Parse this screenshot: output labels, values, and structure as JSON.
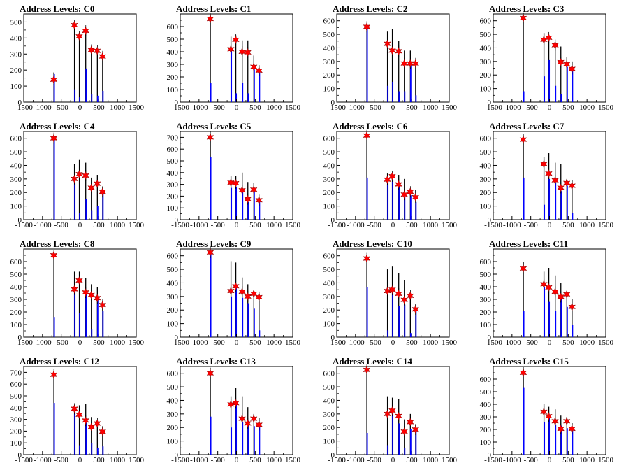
{
  "colors": {
    "background": "#ffffff",
    "bar_total": "#000000",
    "bar_blue": "#0000ff",
    "marker": "#ff0000",
    "axis": "#000000"
  },
  "chart_data": [
    {
      "type": "bar",
      "title": "Address Levels: C0",
      "xlim": [
        -1500,
        1500
      ],
      "ylim": [
        0,
        550
      ],
      "x_ticks": [
        -1500,
        -1000,
        -500,
        0,
        500,
        1000,
        1500
      ],
      "y_ticks": [
        0,
        100,
        200,
        300,
        400,
        500
      ],
      "positions": [
        -700,
        -150,
        -20,
        150,
        300,
        460,
        600
      ],
      "values_black": [
        185,
        500,
        415,
        460,
        340,
        330,
        300
      ],
      "values_blue": [
        175,
        80,
        30,
        210,
        50,
        40,
        70
      ],
      "markers": [
        140,
        480,
        410,
        445,
        325,
        320,
        285
      ]
    },
    {
      "type": "bar",
      "title": "Address Levels: C1",
      "xlim": [
        -1500,
        1500
      ],
      "ylim": [
        0,
        700
      ],
      "x_ticks": [
        -1500,
        -1000,
        -500,
        0,
        500,
        1000,
        1500
      ],
      "y_ticks": [
        0,
        100,
        200,
        300,
        400,
        500,
        600
      ],
      "positions": [
        -700,
        -150,
        -20,
        150,
        300,
        460,
        600
      ],
      "values_black": [
        690,
        520,
        530,
        490,
        490,
        370,
        280
      ],
      "values_blue": [
        150,
        410,
        70,
        150,
        70,
        260,
        250
      ],
      "markers": [
        660,
        420,
        495,
        400,
        395,
        280,
        250
      ]
    },
    {
      "type": "bar",
      "title": "Address Levels: C2",
      "xlim": [
        -1500,
        1500
      ],
      "ylim": [
        0,
        650
      ],
      "x_ticks": [
        -1500,
        -1000,
        -500,
        0,
        500,
        1000,
        1500
      ],
      "y_ticks": [
        0,
        100,
        200,
        300,
        400,
        500,
        600
      ],
      "positions": [
        -700,
        -150,
        -20,
        150,
        300,
        460,
        600
      ],
      "values_black": [
        560,
        520,
        540,
        450,
        380,
        380,
        290
      ],
      "values_blue": [
        540,
        120,
        150,
        80,
        80,
        280,
        50
      ],
      "markers": [
        555,
        430,
        380,
        375,
        285,
        285,
        285
      ]
    },
    {
      "type": "bar",
      "title": "Address Levels: C3",
      "xlim": [
        -1500,
        1500
      ],
      "ylim": [
        0,
        650
      ],
      "x_ticks": [
        -1500,
        -1000,
        -500,
        0,
        500,
        1000,
        1500
      ],
      "y_ticks": [
        0,
        100,
        200,
        300,
        400,
        500,
        600
      ],
      "positions": [
        -700,
        -150,
        -20,
        150,
        300,
        460,
        600
      ],
      "values_black": [
        640,
        510,
        470,
        440,
        410,
        330,
        300
      ],
      "values_blue": [
        80,
        190,
        310,
        120,
        60,
        260,
        230
      ],
      "markers": [
        620,
        460,
        475,
        420,
        295,
        280,
        245
      ]
    },
    {
      "type": "bar",
      "title": "Address Levels: C4",
      "xlim": [
        -1500,
        1500
      ],
      "ylim": [
        0,
        650
      ],
      "x_ticks": [
        -1500,
        -1000,
        -500,
        0,
        500,
        1000,
        1500
      ],
      "y_ticks": [
        0,
        100,
        200,
        300,
        400,
        500,
        600
      ],
      "positions": [
        -700,
        -150,
        -20,
        150,
        300,
        460,
        600
      ],
      "values_black": [
        620,
        410,
        440,
        420,
        310,
        330,
        240
      ],
      "values_blue": [
        600,
        270,
        50,
        150,
        70,
        100,
        200
      ],
      "markers": [
        600,
        300,
        335,
        325,
        235,
        265,
        205
      ]
    },
    {
      "type": "bar",
      "title": "Address Levels: C5",
      "xlim": [
        -1500,
        1500
      ],
      "ylim": [
        0,
        750
      ],
      "x_ticks": [
        -1500,
        -1000,
        -500,
        0,
        500,
        1000,
        1500
      ],
      "y_ticks": [
        0,
        100,
        200,
        300,
        400,
        500,
        600,
        700
      ],
      "positions": [
        -700,
        -150,
        -20,
        150,
        300,
        460,
        600
      ],
      "values_black": [
        730,
        370,
        370,
        400,
        320,
        310,
        190
      ],
      "values_blue": [
        530,
        270,
        280,
        260,
        150,
        260,
        170
      ],
      "markers": [
        700,
        315,
        310,
        250,
        175,
        255,
        165
      ]
    },
    {
      "type": "bar",
      "title": "Address Levels: C6",
      "xlim": [
        -1500,
        1500
      ],
      "ylim": [
        0,
        650
      ],
      "x_ticks": [
        -1500,
        -1000,
        -500,
        0,
        500,
        1000,
        1500
      ],
      "y_ticks": [
        0,
        100,
        200,
        300,
        400,
        500,
        600
      ],
      "positions": [
        -700,
        -150,
        -20,
        150,
        300,
        460,
        600
      ],
      "values_black": [
        640,
        340,
        340,
        330,
        300,
        230,
        220
      ],
      "values_blue": [
        310,
        290,
        290,
        250,
        170,
        180,
        130
      ],
      "markers": [
        620,
        295,
        320,
        260,
        185,
        205,
        165
      ]
    },
    {
      "type": "bar",
      "title": "Address Levels: C7",
      "xlim": [
        -1500,
        1500
      ],
      "ylim": [
        0,
        650
      ],
      "x_ticks": [
        -1500,
        -1000,
        -500,
        0,
        500,
        1000,
        1500
      ],
      "y_ticks": [
        0,
        100,
        200,
        300,
        400,
        500,
        600
      ],
      "positions": [
        -700,
        -150,
        -20,
        150,
        300,
        460,
        600
      ],
      "values_black": [
        620,
        460,
        490,
        420,
        410,
        300,
        290
      ],
      "values_blue": [
        310,
        110,
        300,
        270,
        210,
        250,
        50
      ],
      "markers": [
        590,
        410,
        340,
        290,
        235,
        270,
        250
      ]
    },
    {
      "type": "bar",
      "title": "Address Levels: C8",
      "xlim": [
        -1500,
        1500
      ],
      "ylim": [
        0,
        700
      ],
      "x_ticks": [
        -1500,
        -1000,
        -500,
        0,
        500,
        1000,
        1500
      ],
      "y_ticks": [
        0,
        100,
        200,
        300,
        400,
        500,
        600
      ],
      "positions": [
        -700,
        -150,
        -20,
        150,
        300,
        460,
        600
      ],
      "values_black": [
        680,
        520,
        520,
        470,
        420,
        400,
        280
      ],
      "values_blue": [
        160,
        380,
        190,
        360,
        60,
        300,
        210
      ],
      "markers": [
        650,
        380,
        450,
        355,
        335,
        310,
        255
      ]
    },
    {
      "type": "bar",
      "title": "Address Levels: C9",
      "xlim": [
        -1500,
        1500
      ],
      "ylim": [
        0,
        650
      ],
      "x_ticks": [
        -1500,
        -1000,
        -500,
        0,
        500,
        1000,
        1500
      ],
      "y_ticks": [
        0,
        100,
        200,
        300,
        400,
        500,
        600
      ],
      "positions": [
        -700,
        -150,
        -20,
        150,
        300,
        460,
        600
      ],
      "values_black": [
        640,
        560,
        550,
        440,
        390,
        330,
        300
      ],
      "values_blue": [
        620,
        300,
        360,
        290,
        250,
        210,
        50
      ],
      "markers": [
        625,
        340,
        375,
        335,
        300,
        320,
        295
      ]
    },
    {
      "type": "bar",
      "title": "Address Levels: C10",
      "xlim": [
        -1500,
        1500
      ],
      "ylim": [
        0,
        650
      ],
      "x_ticks": [
        -1500,
        -1000,
        -500,
        0,
        500,
        1000,
        1500
      ],
      "y_ticks": [
        0,
        100,
        200,
        300,
        400,
        500,
        600
      ],
      "positions": [
        -700,
        -150,
        -20,
        150,
        300,
        460,
        600
      ],
      "values_black": [
        600,
        500,
        520,
        470,
        420,
        310,
        240
      ],
      "values_blue": [
        370,
        50,
        340,
        230,
        240,
        30,
        200
      ],
      "markers": [
        580,
        340,
        350,
        320,
        275,
        305,
        205
      ]
    },
    {
      "type": "bar",
      "title": "Address Levels: C11",
      "xlim": [
        -1500,
        1500
      ],
      "ylim": [
        0,
        700
      ],
      "x_ticks": [
        -1500,
        -1000,
        -500,
        0,
        500,
        1000,
        1500
      ],
      "y_ticks": [
        0,
        100,
        200,
        300,
        400,
        500,
        600
      ],
      "positions": [
        -700,
        -150,
        -20,
        150,
        300,
        460,
        600
      ],
      "values_black": [
        600,
        520,
        550,
        490,
        430,
        340,
        300
      ],
      "values_blue": [
        210,
        400,
        280,
        210,
        320,
        240,
        100
      ],
      "markers": [
        545,
        420,
        395,
        360,
        320,
        340,
        240
      ]
    },
    {
      "type": "bar",
      "title": "Address Levels: C12",
      "xlim": [
        -1500,
        1500
      ],
      "ylim": [
        0,
        750
      ],
      "x_ticks": [
        -1500,
        -1000,
        -500,
        0,
        500,
        1000,
        1500
      ],
      "y_ticks": [
        0,
        100,
        200,
        300,
        400,
        500,
        600,
        700
      ],
      "positions": [
        -700,
        -150,
        -20,
        150,
        300,
        460,
        600
      ],
      "values_black": [
        700,
        420,
        420,
        430,
        320,
        270,
        240
      ],
      "values_blue": [
        440,
        380,
        80,
        270,
        100,
        60,
        70
      ],
      "markers": [
        680,
        390,
        340,
        290,
        235,
        265,
        195
      ]
    },
    {
      "type": "bar",
      "title": "Address Levels: C13",
      "xlim": [
        -1500,
        1500
      ],
      "ylim": [
        0,
        650
      ],
      "x_ticks": [
        -1500,
        -1000,
        -500,
        0,
        500,
        1000,
        1500
      ],
      "y_ticks": [
        0,
        100,
        200,
        300,
        400,
        500,
        600
      ],
      "positions": [
        -700,
        -150,
        -20,
        150,
        300,
        460,
        600
      ],
      "values_black": [
        620,
        430,
        490,
        430,
        350,
        300,
        270
      ],
      "values_blue": [
        280,
        200,
        380,
        240,
        250,
        210,
        210
      ],
      "markers": [
        600,
        370,
        380,
        265,
        230,
        265,
        220
      ]
    },
    {
      "type": "bar",
      "title": "Address Levels: C14",
      "xlim": [
        -1500,
        1500
      ],
      "ylim": [
        0,
        650
      ],
      "x_ticks": [
        -1500,
        -1000,
        -500,
        0,
        500,
        1000,
        1500
      ],
      "y_ticks": [
        0,
        100,
        200,
        300,
        400,
        500,
        600
      ],
      "positions": [
        -700,
        -150,
        -20,
        150,
        300,
        460,
        600
      ],
      "values_black": [
        640,
        430,
        420,
        410,
        260,
        300,
        220
      ],
      "values_blue": [
        160,
        70,
        310,
        230,
        50,
        190,
        180
      ],
      "markers": [
        625,
        300,
        325,
        285,
        170,
        240,
        185
      ]
    },
    {
      "type": "bar",
      "title": "Address Levels: C15",
      "xlim": [
        -1500,
        1500
      ],
      "ylim": [
        0,
        700
      ],
      "x_ticks": [
        -1500,
        -1000,
        -500,
        0,
        500,
        1000,
        1500
      ],
      "y_ticks": [
        0,
        100,
        200,
        300,
        400,
        500,
        600
      ],
      "positions": [
        -700,
        -150,
        -20,
        150,
        300,
        460,
        600
      ],
      "values_black": [
        680,
        400,
        380,
        360,
        310,
        300,
        250
      ],
      "values_blue": [
        530,
        260,
        290,
        240,
        230,
        210,
        210
      ],
      "markers": [
        650,
        340,
        305,
        265,
        205,
        265,
        205
      ]
    }
  ]
}
